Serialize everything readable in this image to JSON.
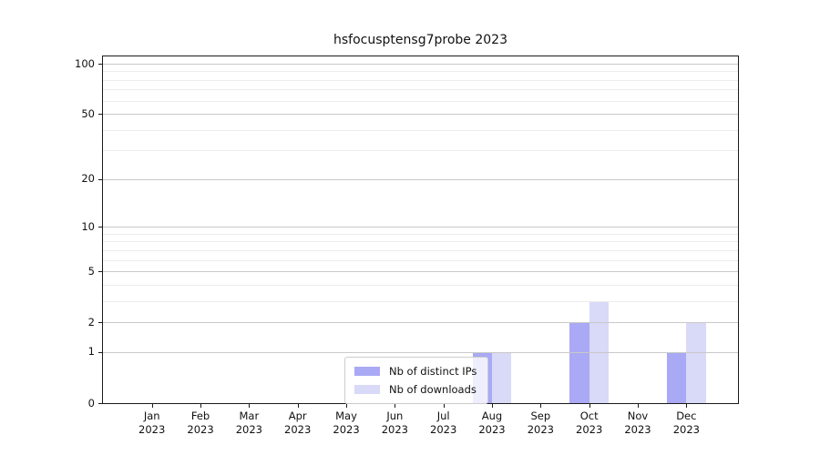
{
  "title": "hsfocusptensg7probe 2023",
  "chart_data": {
    "type": "bar",
    "title": "hsfocusptensg7probe 2023",
    "categories": [
      "Jan 2023",
      "Feb 2023",
      "Mar 2023",
      "Apr 2023",
      "May 2023",
      "Jun 2023",
      "Jul 2023",
      "Aug 2023",
      "Sep 2023",
      "Oct 2023",
      "Nov 2023",
      "Dec 2023"
    ],
    "series": [
      {
        "name": "Nb of distinct IPs",
        "color": "#a9a9f5",
        "values": [
          0,
          0,
          0,
          0,
          0,
          0,
          0,
          1,
          0,
          2,
          0,
          1
        ]
      },
      {
        "name": "Nb of downloads",
        "color": "#d9d9f8",
        "values": [
          0,
          0,
          0,
          0,
          0,
          0,
          0,
          1,
          0,
          3,
          0,
          2
        ]
      }
    ],
    "y_scale": "log1p",
    "ylim": [
      0,
      110
    ],
    "grid": true,
    "legend_position": "lower center",
    "y_axis": {
      "ticks": [
        {
          "value": 0,
          "label": "0"
        },
        {
          "value": 1,
          "label": "1"
        },
        {
          "value": 2,
          "label": "2"
        },
        {
          "value": 5,
          "label": "5"
        },
        {
          "value": 10,
          "label": "10"
        },
        {
          "value": 20,
          "label": "20"
        },
        {
          "value": 50,
          "label": "50"
        },
        {
          "value": 100,
          "label": "100"
        }
      ],
      "minor_gridlines": [
        3,
        4,
        6,
        7,
        8,
        9,
        30,
        40,
        60,
        70,
        80,
        90
      ]
    }
  },
  "colors": {
    "major_grid": "#c9c9c9",
    "minor_grid": "#ececec",
    "axis": "#1a1a1a",
    "legend_border": "#cccccc"
  }
}
